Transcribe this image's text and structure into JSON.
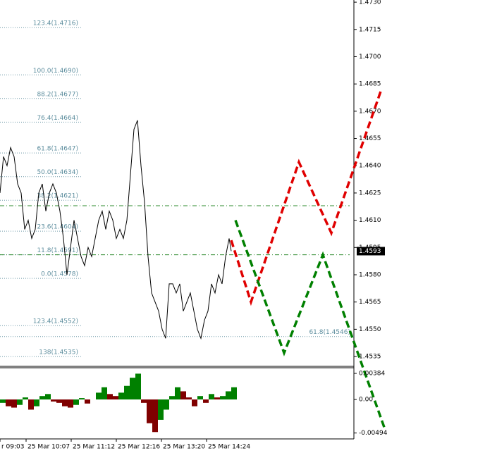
{
  "chart_data": [
    {
      "type": "price",
      "xlim": [
        0,
        502
      ],
      "ylim": [
        1.45296,
        1.47312
      ],
      "xticks": [
        {
          "value": 0,
          "label": "r 09:03"
        },
        {
          "value": 37,
          "label": "25 Mar 10:07"
        },
        {
          "value": 101,
          "label": "25 Mar 11:12"
        },
        {
          "value": 165,
          "label": "25 Mar 12:16"
        },
        {
          "value": 229,
          "label": "25 Mar 13:20"
        },
        {
          "value": 293,
          "label": "25 Mar 14:24"
        }
      ],
      "yticks": [
        {
          "value": 1.473,
          "label": "1.4730"
        },
        1.4715,
        {
          "value": 1.47,
          "label": "1.4700"
        },
        1.4685,
        {
          "value": 1.467,
          "label": "1.4670"
        },
        1.4655,
        {
          "value": 1.464,
          "label": "1.4640"
        },
        1.4625,
        {
          "value": 1.461,
          "label": "1.4610"
        },
        1.4595,
        {
          "value": 1.458,
          "label": "1.4580"
        },
        1.4565,
        {
          "value": 1.455,
          "label": "1.4550"
        },
        1.4535
      ],
      "series": [
        {
          "color": "#000000",
          "x": [
            0,
            5,
            10,
            15,
            20,
            25,
            30,
            35,
            40,
            45,
            50,
            55,
            60,
            65,
            70,
            75,
            80,
            85,
            90,
            95,
            100,
            105,
            110,
            115,
            120,
            125,
            130,
            135,
            140,
            145,
            150,
            155,
            160,
            165,
            170,
            175,
            180,
            185,
            190,
            195,
            200,
            205,
            210,
            215,
            220,
            225,
            230,
            235,
            240,
            245,
            250,
            255,
            260,
            265,
            270,
            275,
            280,
            285,
            290,
            295,
            300,
            305,
            310,
            315,
            320,
            325,
            328
          ],
          "values": [
            1.4625,
            1.4645,
            1.464,
            1.465,
            1.4645,
            1.463,
            1.4625,
            1.4605,
            1.461,
            1.46,
            1.4605,
            1.4625,
            1.463,
            1.4615,
            1.4625,
            1.463,
            1.4625,
            1.4615,
            1.46,
            1.458,
            1.4595,
            1.461,
            1.46,
            1.459,
            1.4585,
            1.4595,
            1.459,
            1.46,
            1.461,
            1.4615,
            1.4605,
            1.4615,
            1.461,
            1.46,
            1.4605,
            1.46,
            1.461,
            1.4635,
            1.466,
            1.4665,
            1.464,
            1.462,
            1.459,
            1.457,
            1.4565,
            1.456,
            1.455,
            1.4545,
            1.4575,
            1.4575,
            1.457,
            1.4575,
            1.456,
            1.4565,
            1.457,
            1.456,
            1.455,
            1.4545,
            1.4555,
            1.456,
            1.4575,
            1.457,
            1.458,
            1.4575,
            1.459,
            1.46,
            1.4593
          ]
        }
      ],
      "fib_levels": [
        {
          "value": 1.4716,
          "label": "123.4(1.4716)"
        },
        {
          "value": 1.469,
          "label": "100.0(1.4690)"
        },
        {
          "value": 1.4677,
          "label": "88.2(1.4677)"
        },
        {
          "value": 1.4664,
          "label": "76.4(1.4664)"
        },
        {
          "value": 1.4647,
          "label": "61.8(1.4647)"
        },
        {
          "value": 1.4634,
          "label": "50.0(1.4634)"
        },
        {
          "value": 1.4621,
          "label": "38.2(1.4621)"
        },
        {
          "value": 1.4604,
          "label": "23.6(1.4604)"
        },
        {
          "value": 1.4591,
          "label": "11.8(1.4591)"
        },
        {
          "value": 1.4578,
          "label": "0.0(1.4578)"
        },
        {
          "value": 1.4552,
          "label": "123.4(1.4552)"
        },
        {
          "value": 1.4535,
          "label": "138(1.4535)"
        }
      ],
      "right_fib": {
        "value": 1.4546,
        "label": "61.8(1.4546)"
      },
      "levels": [
        1.4618,
        1.4591
      ],
      "zigzags": [
        {
          "color": "#e00000",
          "x": [
            328,
            356,
            424,
            470,
            541
          ],
          "values": [
            1.4599,
            1.4565,
            1.4642,
            1.4603,
            1.4682
          ]
        },
        {
          "color": "#008000",
          "x": [
            334,
            403,
            458,
            546
          ],
          "values": [
            1.461,
            1.4537,
            1.4591,
            1.4495
          ]
        }
      ],
      "current_price": 1.4593
    },
    {
      "type": "histogram",
      "xlim": [
        0,
        502
      ],
      "ylim": [
        -0.00581,
        0.00467
      ],
      "yticks": [
        0.00384,
        {
          "value": 0,
          "label": "0.00"
        },
        -0.00494
      ],
      "x": [
        0,
        8,
        16,
        24,
        32,
        40,
        48,
        56,
        64,
        72,
        80,
        88,
        96,
        104,
        112,
        120,
        128,
        136,
        144,
        152,
        160,
        168,
        176,
        184,
        192,
        200,
        208,
        216,
        224,
        232,
        240,
        248,
        256,
        264,
        272,
        280,
        288,
        296,
        304,
        312,
        320,
        328
      ],
      "values": [
        -0.0005,
        -0.001,
        -0.0012,
        -0.0008,
        0.0003,
        -0.0015,
        -0.001,
        0.0005,
        0.0008,
        -0.0003,
        -0.0005,
        -0.001,
        -0.0012,
        -0.0008,
        0.0002,
        -0.0006,
        0,
        0.001,
        0.0018,
        0.0008,
        0.0005,
        0.001,
        0.002,
        0.0032,
        0.0038,
        -0.0005,
        -0.0035,
        -0.0048,
        -0.003,
        -0.0015,
        0.0005,
        0.0018,
        0.0012,
        0.0003,
        -0.001,
        0.0005,
        -0.0005,
        0.0008,
        0.0003,
        0.0005,
        0.0012,
        0.0018
      ],
      "colors": [
        "#008000",
        "#800000"
      ]
    }
  ]
}
